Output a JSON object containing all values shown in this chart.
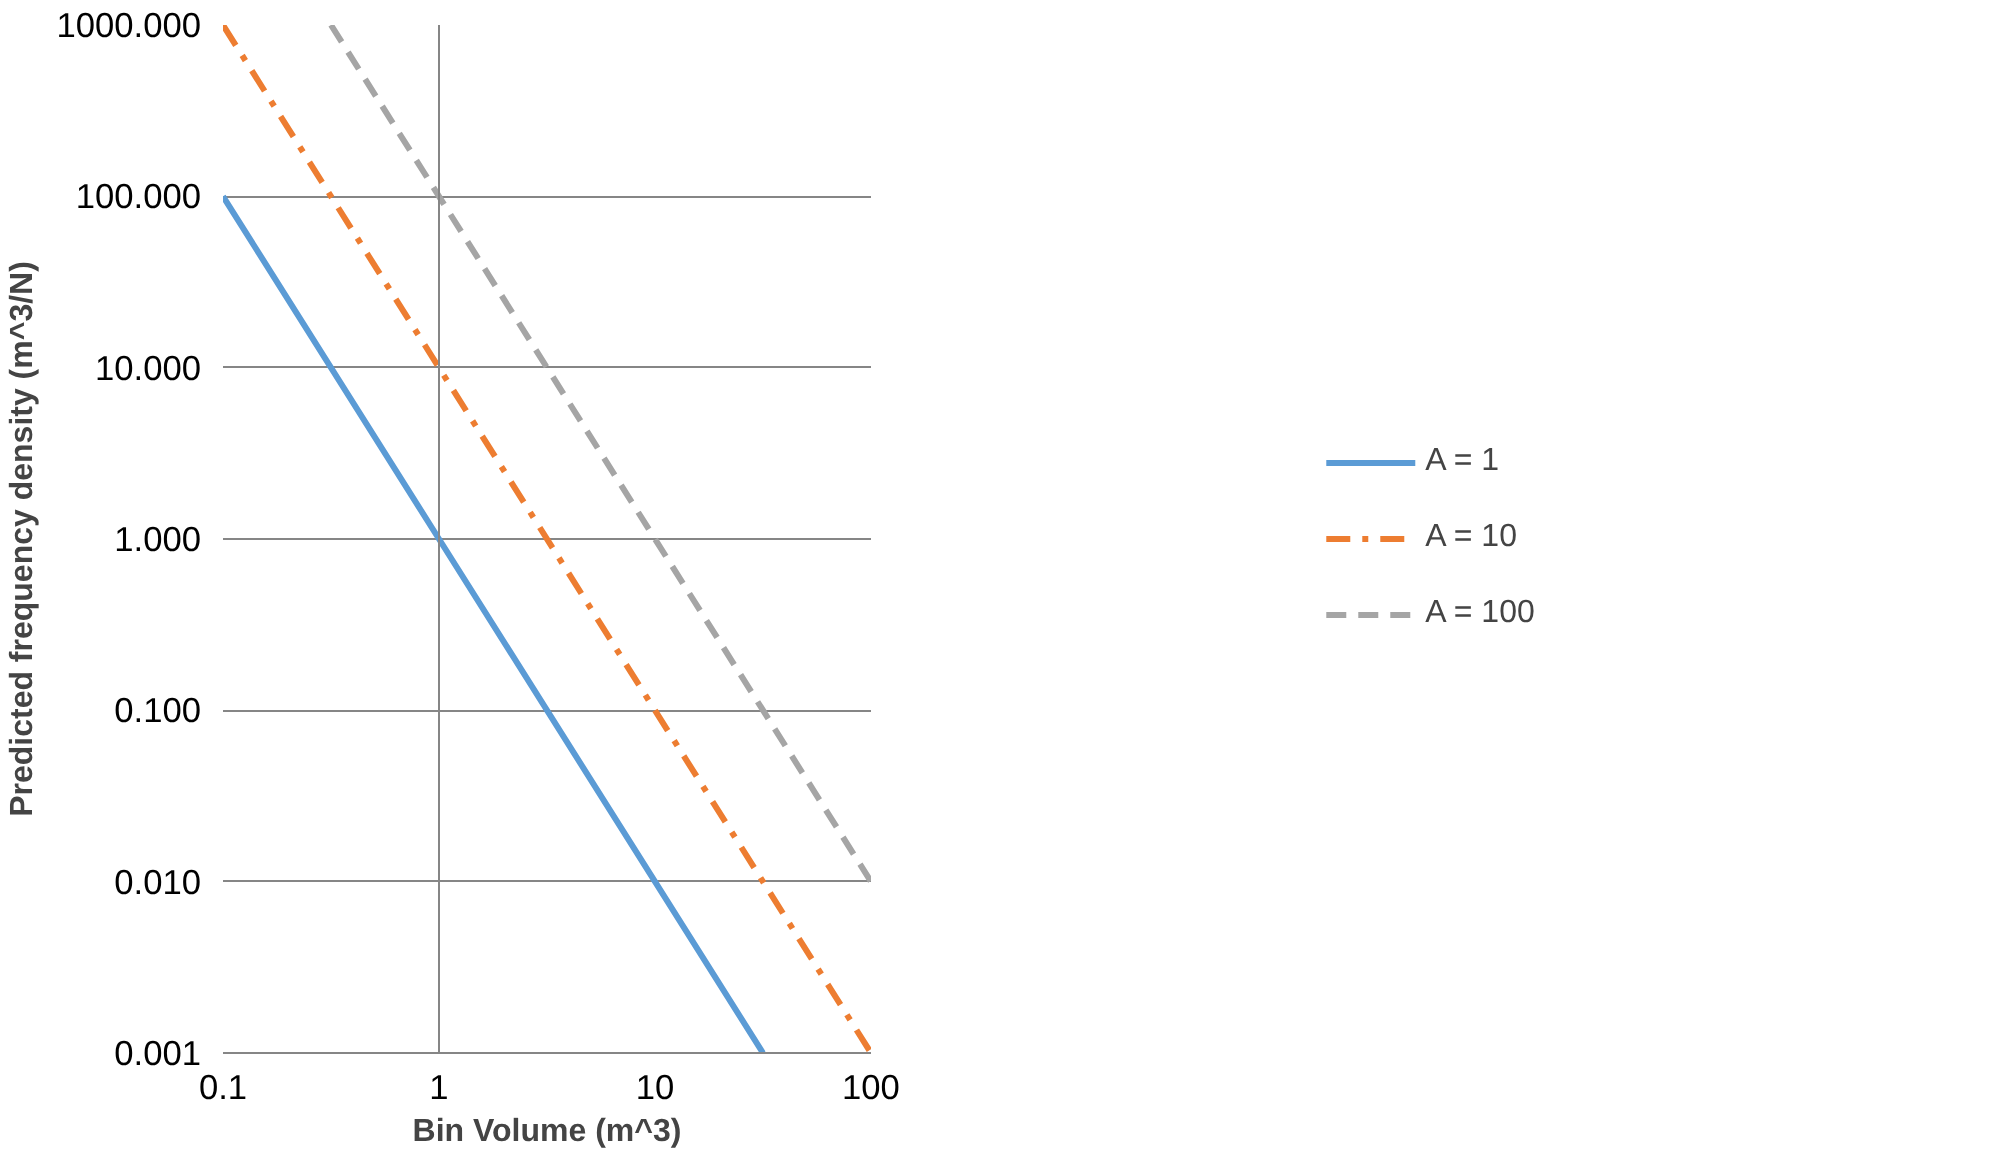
{
  "chart_data": {
    "type": "line",
    "xlabel": "Bin Volume (m^3)",
    "ylabel": "Predicted frequency density (m^3/N)",
    "log": "xy",
    "grid": "y",
    "legend": "right",
    "xlim": [
      0.1,
      100
    ],
    "xticks": [
      0.1,
      1,
      10,
      100
    ],
    "ylim": [
      0.001,
      1000
    ],
    "yticks": [
      {
        "value": 0.001,
        "label": "0.001"
      },
      {
        "value": 0.01,
        "label": "0.010"
      },
      {
        "value": 0.1,
        "label": "0.100"
      },
      {
        "value": 1,
        "label": "1.000"
      },
      {
        "value": 10,
        "label": "10.000"
      },
      {
        "value": 100,
        "label": "100.000"
      },
      {
        "value": 1000,
        "label": "1000.000"
      }
    ],
    "ref_lines": [
      {
        "axis": "x",
        "value": 1,
        "label": null,
        "color": "#868686"
      }
    ],
    "series": [
      {
        "name": "A = 1",
        "color": "#5b9bd5",
        "line_style": "solid",
        "x": [
          0.1,
          1,
          10,
          31.62
        ],
        "values": [
          100,
          1,
          0.01,
          0.001
        ]
      },
      {
        "name": "A = 10",
        "color": "#ed7d31",
        "line_style": "dashdot",
        "x": [
          0.1,
          1,
          10,
          100
        ],
        "values": [
          1000,
          10,
          0.1,
          0.001
        ]
      },
      {
        "name": "A = 100",
        "color": "#a5a5a5",
        "line_style": "dashed",
        "x": [
          0.3162,
          1,
          10,
          100
        ],
        "values": [
          1000,
          100,
          1,
          0.01
        ]
      }
    ]
  }
}
